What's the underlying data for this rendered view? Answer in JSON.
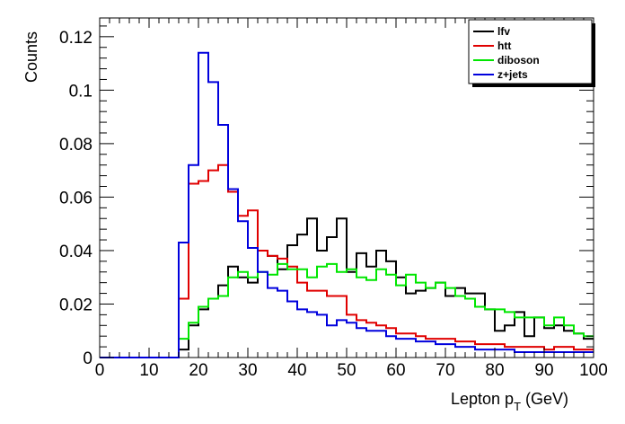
{
  "chart_data": {
    "type": "histogram",
    "title": "",
    "xlabel": "Lepton p",
    "xlabel_sub": "T",
    "xlabel_unit": " (GeV)",
    "ylabel": "Counts",
    "xlim": [
      0,
      100
    ],
    "ylim": [
      0,
      0.127
    ],
    "bin_width": 2,
    "bin_edges_start": 0,
    "x_ticks": [
      0,
      10,
      20,
      30,
      40,
      50,
      60,
      70,
      80,
      90,
      100
    ],
    "y_ticks": [
      0,
      0.02,
      0.04,
      0.06,
      0.08,
      0.1,
      0.12
    ],
    "y_tick_labels": [
      "0",
      "0.02",
      "0.04",
      "0.06",
      "0.08",
      "0.1",
      "0.12"
    ],
    "grid": false,
    "legend_position": "top-right",
    "series": [
      {
        "name": "lfv",
        "color": "#000000",
        "values": [
          0,
          0,
          0,
          0,
          0,
          0,
          0,
          0,
          0.003,
          0.012,
          0.018,
          0.022,
          0.027,
          0.034,
          0.03,
          0.028,
          0.04,
          0.038,
          0.033,
          0.042,
          0.046,
          0.052,
          0.04,
          0.045,
          0.052,
          0.032,
          0.039,
          0.034,
          0.04,
          0.036,
          0.03,
          0.024,
          0.025,
          0.026,
          0.028,
          0.023,
          0.026,
          0.024,
          0.024,
          0.018,
          0.01,
          0.012,
          0.017,
          0.008,
          0.015,
          0.011,
          0.012,
          0.01,
          0.009,
          0.007
        ]
      },
      {
        "name": "htt",
        "color": "#e00000",
        "values": [
          0,
          0,
          0,
          0,
          0,
          0,
          0,
          0,
          0.022,
          0.065,
          0.066,
          0.07,
          0.072,
          0.062,
          0.053,
          0.055,
          0.04,
          0.038,
          0.037,
          0.034,
          0.028,
          0.025,
          0.025,
          0.023,
          0.023,
          0.016,
          0.014,
          0.013,
          0.012,
          0.011,
          0.009,
          0.009,
          0.008,
          0.007,
          0.007,
          0.007,
          0.006,
          0.006,
          0.005,
          0.005,
          0.005,
          0.004,
          0.004,
          0.004,
          0.004,
          0.003,
          0.004,
          0.004,
          0.003,
          0.003
        ]
      },
      {
        "name": "diboson",
        "color": "#00e600",
        "values": [
          0,
          0,
          0,
          0,
          0,
          0,
          0,
          0,
          0.007,
          0.013,
          0.019,
          0.022,
          0.023,
          0.03,
          0.032,
          0.03,
          0.032,
          0.031,
          0.035,
          0.033,
          0.033,
          0.03,
          0.034,
          0.035,
          0.032,
          0.033,
          0.03,
          0.029,
          0.033,
          0.031,
          0.027,
          0.031,
          0.028,
          0.026,
          0.028,
          0.026,
          0.023,
          0.022,
          0.019,
          0.018,
          0.018,
          0.017,
          0.015,
          0.015,
          0.015,
          0.012,
          0.015,
          0.012,
          0.009,
          0.008
        ]
      },
      {
        "name": "z+jets",
        "color": "#0000dd",
        "values": [
          0,
          0,
          0,
          0,
          0,
          0,
          0,
          0,
          0.043,
          0.072,
          0.114,
          0.103,
          0.087,
          0.063,
          0.051,
          0.041,
          0.032,
          0.026,
          0.025,
          0.021,
          0.018,
          0.017,
          0.016,
          0.012,
          0.014,
          0.013,
          0.011,
          0.01,
          0.01,
          0.008,
          0.007,
          0.007,
          0.006,
          0.006,
          0.005,
          0.005,
          0.004,
          0.004,
          0.003,
          0.003,
          0.003,
          0.003,
          0.002,
          0.002,
          0.002,
          0.002,
          0.002,
          0.002,
          0.002,
          0.002
        ]
      }
    ]
  }
}
